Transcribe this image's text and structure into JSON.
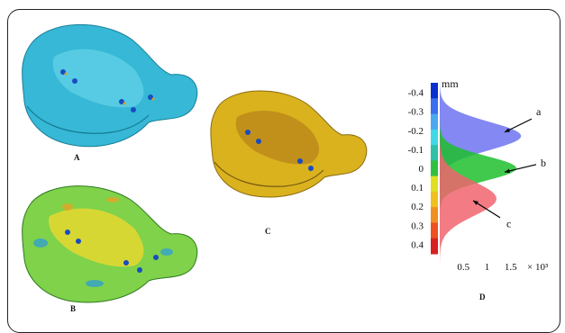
{
  "panels": {
    "a": {
      "letter": "A"
    },
    "b": {
      "letter": "B"
    },
    "c": {
      "letter": "C"
    },
    "d": {
      "letter": "D"
    }
  },
  "colors": {
    "model_a": "#3fc0d8",
    "model_c": "#d9b21e",
    "series_a": "#6d73f0",
    "series_b": "#1fbf2e",
    "series_c": "#f0646e"
  },
  "chart_data": {
    "type": "area",
    "unit_label": "mm",
    "x_multiplier_label": "× 10³",
    "x_ticks": [
      "0.5",
      "1",
      "1.5"
    ],
    "y_ticks": [
      "-0.4",
      "-0.3",
      "-0.2",
      "-0.1",
      "0",
      "0.1",
      "0.2",
      "0.3",
      "0.4"
    ],
    "ylim": [
      -0.45,
      0.45
    ],
    "xlim": [
      0,
      2.0
    ],
    "colorbar": [
      "#0a2fd0",
      "#3a6ff0",
      "#4aa8f0",
      "#3fd8e8",
      "#2fc0a8",
      "#30c040",
      "#e0e020",
      "#f0c020",
      "#f09020",
      "#f05020",
      "#d82020"
    ],
    "series": [
      {
        "name": "a",
        "peak_y": -0.17,
        "peak_x": 1.72,
        "sigma": 0.075,
        "color": "#6d73f0"
      },
      {
        "name": "b",
        "peak_y": 0.0,
        "peak_x": 1.62,
        "sigma": 0.065,
        "color": "#1fbf2e"
      },
      {
        "name": "c",
        "peak_y": 0.16,
        "peak_x": 1.2,
        "sigma": 0.09,
        "color": "#f0646e"
      }
    ]
  }
}
